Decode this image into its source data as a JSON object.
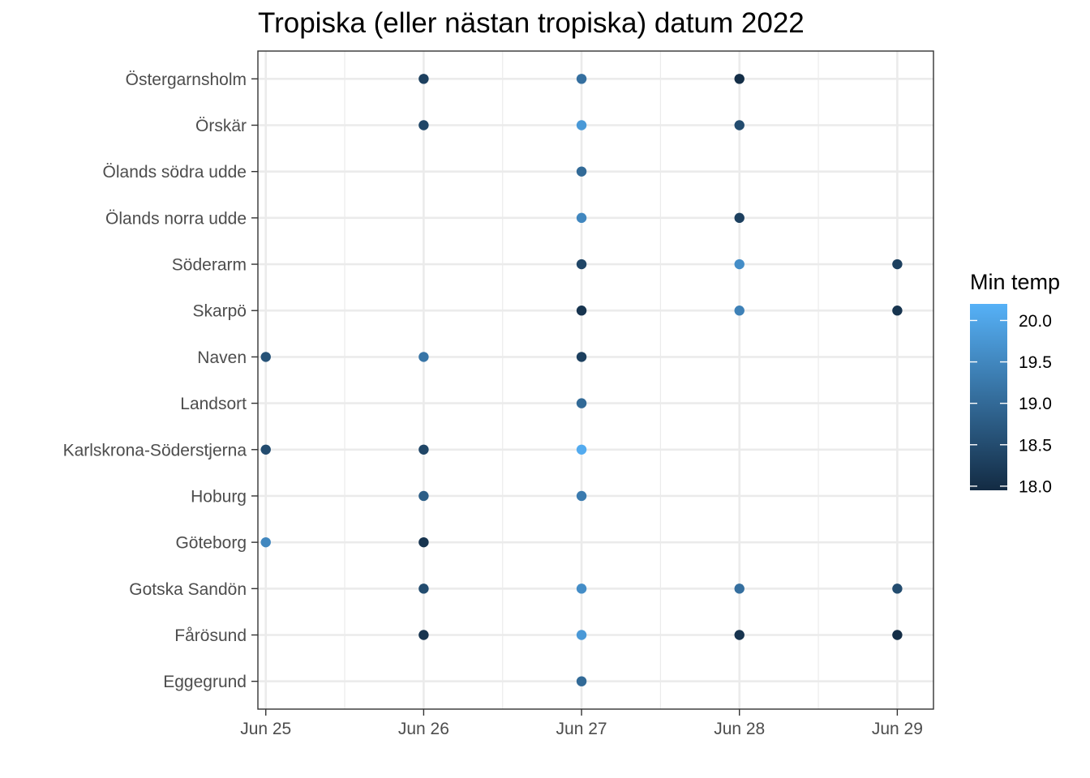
{
  "chart_data": {
    "type": "scatter",
    "title": "Tropiska (eller nästan tropiska) datum 2022",
    "xlabel": "",
    "ylabel": "",
    "x_ticks": [
      "Jun 25",
      "Jun 26",
      "Jun 27",
      "Jun 28",
      "Jun 29"
    ],
    "x_range": [
      "2022-06-24T22:48",
      "2022-06-29T05:30"
    ],
    "y_categories": [
      "Eggegrund",
      "Fårösund",
      "Gotska Sandön",
      "Göteborg",
      "Hoburg",
      "Karlskrona-Söderstjerna",
      "Landsort",
      "Naven",
      "Skarpö",
      "Söderarm",
      "Ölands norra udde",
      "Ölands södra udde",
      "Örskär",
      "Östergarnsholm"
    ],
    "grid": true,
    "legend": {
      "title": "Min temp",
      "placement": "right",
      "type": "colorbar",
      "min": 17.95,
      "max": 20.2,
      "breaks": [
        18.0,
        18.5,
        19.0,
        19.5,
        20.0
      ],
      "labels": [
        "18.0",
        "18.5",
        "19.0",
        "19.5",
        "20.0"
      ],
      "low_color": "#132B43",
      "high_color": "#56B1F7"
    },
    "points": [
      {
        "station": "Östergarnsholm",
        "date": "2022-06-26",
        "min_temp": 18.3
      },
      {
        "station": "Östergarnsholm",
        "date": "2022-06-27",
        "min_temp": 19.1
      },
      {
        "station": "Östergarnsholm",
        "date": "2022-06-28",
        "min_temp": 18.0
      },
      {
        "station": "Örskär",
        "date": "2022-06-26",
        "min_temp": 18.4
      },
      {
        "station": "Örskär",
        "date": "2022-06-27",
        "min_temp": 19.8
      },
      {
        "station": "Örskär",
        "date": "2022-06-28",
        "min_temp": 18.5
      },
      {
        "station": "Ölands södra udde",
        "date": "2022-06-27",
        "min_temp": 19.0
      },
      {
        "station": "Ölands norra udde",
        "date": "2022-06-27",
        "min_temp": 19.5
      },
      {
        "station": "Ölands norra udde",
        "date": "2022-06-28",
        "min_temp": 18.3
      },
      {
        "station": "Söderarm",
        "date": "2022-06-27",
        "min_temp": 18.4
      },
      {
        "station": "Söderarm",
        "date": "2022-06-28",
        "min_temp": 19.6
      },
      {
        "station": "Söderarm",
        "date": "2022-06-29",
        "min_temp": 18.3
      },
      {
        "station": "Skarpö",
        "date": "2022-06-27",
        "min_temp": 18.1
      },
      {
        "station": "Skarpö",
        "date": "2022-06-28",
        "min_temp": 19.4
      },
      {
        "station": "Skarpö",
        "date": "2022-06-29",
        "min_temp": 18.1
      },
      {
        "station": "Naven",
        "date": "2022-06-25",
        "min_temp": 18.6
      },
      {
        "station": "Naven",
        "date": "2022-06-26",
        "min_temp": 19.2
      },
      {
        "station": "Naven",
        "date": "2022-06-27",
        "min_temp": 18.3
      },
      {
        "station": "Landsort",
        "date": "2022-06-27",
        "min_temp": 19.0
      },
      {
        "station": "Karlskrona-Söderstjerna",
        "date": "2022-06-25",
        "min_temp": 18.5
      },
      {
        "station": "Karlskrona-Söderstjerna",
        "date": "2022-06-26",
        "min_temp": 18.4
      },
      {
        "station": "Karlskrona-Söderstjerna",
        "date": "2022-06-27",
        "min_temp": 20.1
      },
      {
        "station": "Hoburg",
        "date": "2022-06-26",
        "min_temp": 18.8
      },
      {
        "station": "Hoburg",
        "date": "2022-06-27",
        "min_temp": 19.3
      },
      {
        "station": "Göteborg",
        "date": "2022-06-25",
        "min_temp": 19.5
      },
      {
        "station": "Göteborg",
        "date": "2022-06-26",
        "min_temp": 18.1
      },
      {
        "station": "Gotska Sandön",
        "date": "2022-06-26",
        "min_temp": 18.5
      },
      {
        "station": "Gotska Sandön",
        "date": "2022-06-27",
        "min_temp": 19.6
      },
      {
        "station": "Gotska Sandön",
        "date": "2022-06-28",
        "min_temp": 19.1
      },
      {
        "station": "Gotska Sandön",
        "date": "2022-06-29",
        "min_temp": 18.5
      },
      {
        "station": "Fårösund",
        "date": "2022-06-26",
        "min_temp": 18.1
      },
      {
        "station": "Fårösund",
        "date": "2022-06-27",
        "min_temp": 19.8
      },
      {
        "station": "Fårösund",
        "date": "2022-06-28",
        "min_temp": 18.1
      },
      {
        "station": "Fårösund",
        "date": "2022-06-29",
        "min_temp": 18.0
      },
      {
        "station": "Eggegrund",
        "date": "2022-06-27",
        "min_temp": 19.0
      }
    ]
  }
}
